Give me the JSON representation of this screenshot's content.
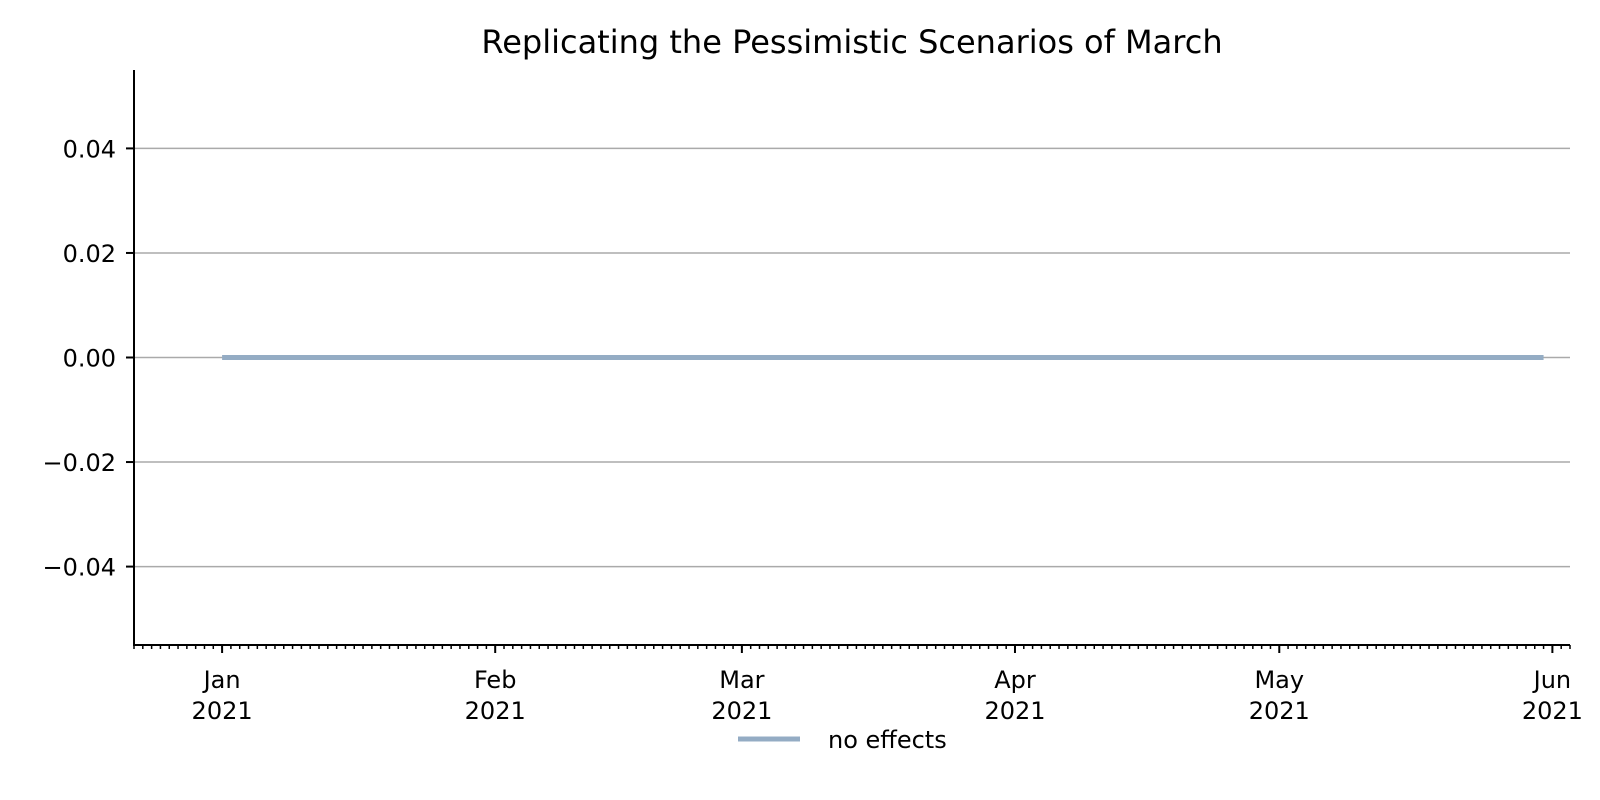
{
  "chart_data": {
    "type": "line",
    "title": "Replicating the Pessimistic Scenarios of March",
    "xlabel": "",
    "ylabel": "",
    "x_axis_type": "date",
    "xlim": [
      "2020-12-22",
      "2021-06-03"
    ],
    "ylim": [
      -0.055,
      0.055
    ],
    "grid": "horizontal",
    "y_ticks": [
      -0.04,
      -0.02,
      0.0,
      0.02,
      0.04
    ],
    "y_tick_labels": [
      "−0.04",
      "−0.02",
      "0.00",
      "0.02",
      "0.04"
    ],
    "x_ticks": [
      {
        "date": "2021-01-01",
        "label_month": "Jan",
        "label_year": "2021"
      },
      {
        "date": "2021-02-01",
        "label_month": "Feb",
        "label_year": "2021"
      },
      {
        "date": "2021-03-01",
        "label_month": "Mar",
        "label_year": "2021"
      },
      {
        "date": "2021-04-01",
        "label_month": "Apr",
        "label_year": "2021"
      },
      {
        "date": "2021-05-01",
        "label_month": "May",
        "label_year": "2021"
      },
      {
        "date": "2021-06-01",
        "label_month": "Jun",
        "label_year": "2021"
      }
    ],
    "series": [
      {
        "name": "no effects",
        "color": "#94acc4",
        "x": [
          "2021-01-01",
          "2021-05-31"
        ],
        "y": [
          0.0,
          0.0
        ]
      }
    ],
    "legend_position": "bottom-center"
  }
}
